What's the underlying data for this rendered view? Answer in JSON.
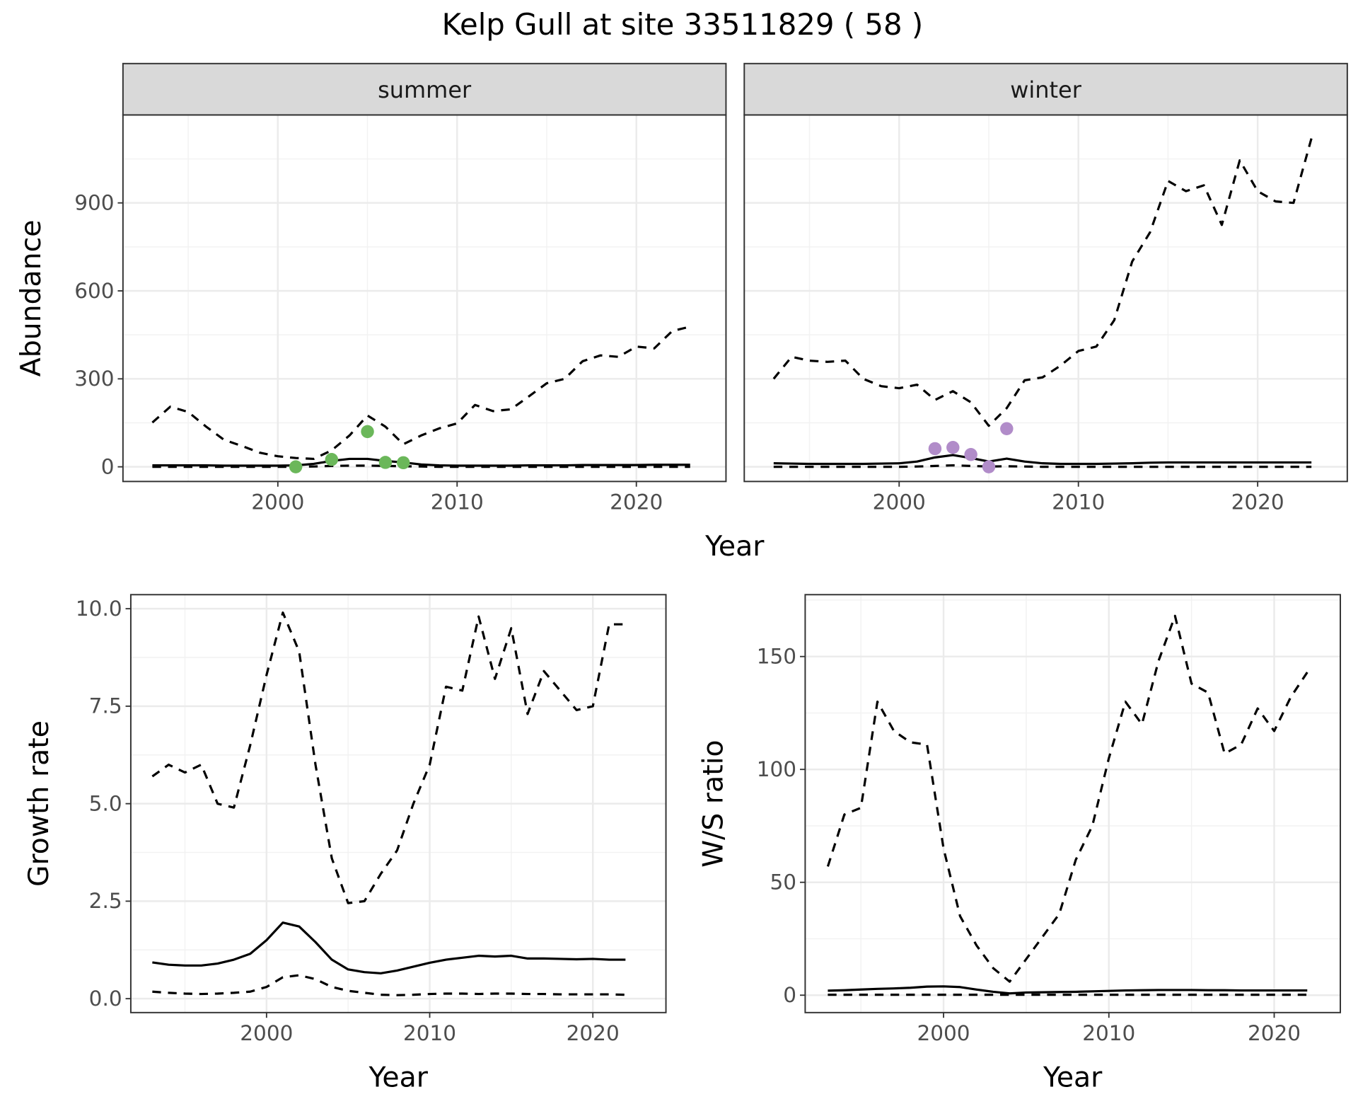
{
  "title": "Kelp Gull at site 33511829 ( 58 )",
  "top_row_xlabel": "Year",
  "chart_data": [
    {
      "type": "line",
      "strip": "summer",
      "ylabel": "Abundance",
      "xlim": [
        1991.36,
        2025.0
      ],
      "ylim": [
        -50,
        1200
      ],
      "xticks": [
        2000,
        2010,
        2020
      ],
      "yticks": [
        0,
        300,
        600,
        900
      ],
      "grid": true,
      "ytick_labels": true,
      "x": [
        1993,
        1994,
        1995,
        1996,
        1997,
        1998,
        1999,
        2000,
        2001,
        2002,
        2003,
        2004,
        2005,
        2006,
        2007,
        2008,
        2009,
        2010,
        2011,
        2012,
        2013,
        2014,
        2015,
        2016,
        2017,
        2018,
        2019,
        2020,
        2021,
        2022,
        2023
      ],
      "series": [
        {
          "color": "#000000",
          "dash": "dashed",
          "values": [
            151,
            205,
            187,
            137,
            92,
            71,
            48,
            36,
            30,
            27,
            56,
            107,
            175,
            137,
            77,
            107,
            131,
            148,
            211,
            190,
            196,
            240,
            285,
            300,
            360,
            380,
            375,
            410,
            404,
            463,
            478
          ]
        },
        {
          "color": "#000000",
          "dash": "solid",
          "values": [
            5,
            5,
            5,
            5,
            4,
            4,
            4,
            4,
            5,
            10,
            20,
            27,
            27,
            20,
            15,
            8,
            5,
            4,
            4,
            4,
            4,
            5,
            5,
            5,
            6,
            6,
            6,
            6,
            7,
            7,
            7
          ]
        },
        {
          "color": "#000000",
          "dash": "dashed",
          "values": [
            0,
            0,
            0,
            0,
            0,
            0,
            0,
            0,
            0,
            1,
            3,
            4,
            4,
            3,
            2,
            1,
            0,
            0,
            0,
            0,
            0,
            0,
            0,
            0,
            0,
            0,
            0,
            0,
            0,
            0,
            0
          ]
        },
        {
          "kind": "points",
          "color": "#6bb75a",
          "x": [
            2001,
            2003,
            2005,
            2006,
            2007
          ],
          "values": [
            0,
            25,
            120,
            15,
            14
          ]
        }
      ]
    },
    {
      "type": "line",
      "strip": "winter",
      "xlim": [
        1991.36,
        2025.0
      ],
      "ylim": [
        -50,
        1200
      ],
      "xticks": [
        2000,
        2010,
        2020
      ],
      "yticks": [
        0,
        300,
        600,
        900
      ],
      "grid": true,
      "ytick_labels": false,
      "x": [
        1993,
        1994,
        1995,
        1996,
        1997,
        1998,
        1999,
        2000,
        2001,
        2002,
        2003,
        2004,
        2005,
        2006,
        2007,
        2008,
        2009,
        2010,
        2011,
        2012,
        2013,
        2014,
        2015,
        2016,
        2017,
        2018,
        2019,
        2020,
        2021,
        2022,
        2023
      ],
      "series": [
        {
          "color": "#000000",
          "dash": "dashed",
          "values": [
            300,
            375,
            362,
            358,
            362,
            300,
            275,
            268,
            280,
            228,
            258,
            220,
            140,
            200,
            295,
            305,
            345,
            395,
            410,
            500,
            700,
            800,
            975,
            940,
            960,
            825,
            1045,
            940,
            905,
            900,
            1120
          ]
        },
        {
          "color": "#000000",
          "dash": "solid",
          "values": [
            12,
            11,
            10,
            10,
            10,
            10,
            11,
            12,
            18,
            32,
            40,
            30,
            18,
            28,
            18,
            12,
            10,
            10,
            10,
            11,
            12,
            14,
            15,
            15,
            15,
            15,
            15,
            15,
            15,
            15,
            15
          ]
        },
        {
          "color": "#000000",
          "dash": "dashed",
          "values": [
            0,
            0,
            0,
            0,
            0,
            0,
            0,
            0,
            1,
            3,
            5,
            3,
            1,
            2,
            1,
            0,
            0,
            0,
            0,
            0,
            0,
            0,
            0,
            0,
            0,
            0,
            0,
            0,
            0,
            0,
            0
          ]
        },
        {
          "kind": "points",
          "color": "#b18cc9",
          "x": [
            2002,
            2003,
            2004,
            2005,
            2006
          ],
          "values": [
            62,
            66,
            42,
            0,
            130
          ]
        }
      ]
    },
    {
      "type": "line",
      "ylabel": "Growth rate",
      "xlabel": "Year",
      "xlim": [
        1991.68,
        2024.48
      ],
      "ylim": [
        -0.357,
        10.36
      ],
      "xticks": [
        2000,
        2010,
        2020
      ],
      "yticks": [
        {
          "value": 0,
          "label": "0.0"
        },
        2.5,
        {
          "value": 5,
          "label": "5.0"
        },
        7.5,
        {
          "value": 10,
          "label": "10.0"
        }
      ],
      "grid": true,
      "ytick_labels": true,
      "x": [
        1993,
        1994,
        1995,
        1996,
        1997,
        1998,
        1999,
        2000,
        2001,
        2002,
        2003,
        2004,
        2005,
        2006,
        2007,
        2008,
        2009,
        2010,
        2011,
        2012,
        2013,
        2014,
        2015,
        2016,
        2017,
        2018,
        2019,
        2020,
        2021,
        2022
      ],
      "series": [
        {
          "color": "#000000",
          "dash": "dashed",
          "values": [
            5.7,
            6.0,
            5.8,
            6.0,
            5.0,
            4.9,
            6.5,
            8.3,
            9.9,
            8.9,
            6.0,
            3.6,
            2.45,
            2.5,
            3.2,
            3.8,
            5.0,
            6.0,
            8.0,
            7.9,
            9.8,
            8.2,
            9.5,
            7.3,
            8.4,
            7.9,
            7.4,
            7.5,
            9.6,
            9.6
          ]
        },
        {
          "color": "#000000",
          "dash": "solid",
          "values": [
            0.93,
            0.87,
            0.85,
            0.85,
            0.9,
            1.0,
            1.15,
            1.5,
            1.95,
            1.85,
            1.45,
            1.0,
            0.75,
            0.68,
            0.65,
            0.72,
            0.82,
            0.92,
            1.0,
            1.05,
            1.1,
            1.08,
            1.1,
            1.03,
            1.03,
            1.02,
            1.01,
            1.02,
            1.0,
            1.0
          ]
        },
        {
          "color": "#000000",
          "dash": "dashed",
          "values": [
            0.18,
            0.15,
            0.13,
            0.12,
            0.13,
            0.15,
            0.18,
            0.3,
            0.55,
            0.6,
            0.5,
            0.3,
            0.2,
            0.15,
            0.1,
            0.09,
            0.1,
            0.12,
            0.13,
            0.13,
            0.12,
            0.13,
            0.13,
            0.12,
            0.12,
            0.11,
            0.11,
            0.11,
            0.11,
            0.1
          ]
        }
      ]
    },
    {
      "type": "line",
      "ylabel": "W/S ratio",
      "xlabel": "Year",
      "xlim": [
        1991.63,
        2024.0
      ],
      "ylim": [
        -7.7,
        177.4
      ],
      "xticks": [
        2000,
        2010,
        2020
      ],
      "yticks": [
        0,
        50,
        100,
        150
      ],
      "grid": true,
      "ytick_labels": true,
      "x": [
        1993,
        1994,
        1995,
        1996,
        1997,
        1998,
        1999,
        2000,
        2001,
        2002,
        2003,
        2004,
        2005,
        2006,
        2007,
        2008,
        2009,
        2010,
        2011,
        2012,
        2013,
        2014,
        2015,
        2016,
        2017,
        2018,
        2019,
        2020,
        2021,
        2022
      ],
      "series": [
        {
          "color": "#000000",
          "dash": "dashed",
          "values": [
            57,
            80,
            83,
            130,
            117,
            112,
            111,
            65,
            35,
            22,
            12,
            6,
            16,
            26,
            36,
            60,
            75,
            105,
            130,
            120,
            148,
            168,
            138,
            134,
            107,
            111,
            127,
            117,
            132,
            143
          ]
        },
        {
          "color": "#000000",
          "dash": "solid",
          "values": [
            2,
            2.2,
            2.5,
            2.8,
            3,
            3.3,
            3.8,
            3.9,
            3.6,
            2.5,
            1.5,
            0.8,
            1.2,
            1.3,
            1.4,
            1.5,
            1.7,
            1.9,
            2.1,
            2.2,
            2.3,
            2.3,
            2.3,
            2.2,
            2.2,
            2.1,
            2.1,
            2.1,
            2.1,
            2.1
          ]
        },
        {
          "color": "#000000",
          "dash": "dashed",
          "values": [
            0.2,
            0.2,
            0.2,
            0.2,
            0.2,
            0.2,
            0.2,
            0.2,
            0.2,
            0.2,
            0.2,
            0.2,
            0.2,
            0.2,
            0.2,
            0.2,
            0.2,
            0.2,
            0.2,
            0.2,
            0.2,
            0.2,
            0.2,
            0.2,
            0.2,
            0.2,
            0.2,
            0.2,
            0.2,
            0.2
          ]
        }
      ]
    }
  ]
}
